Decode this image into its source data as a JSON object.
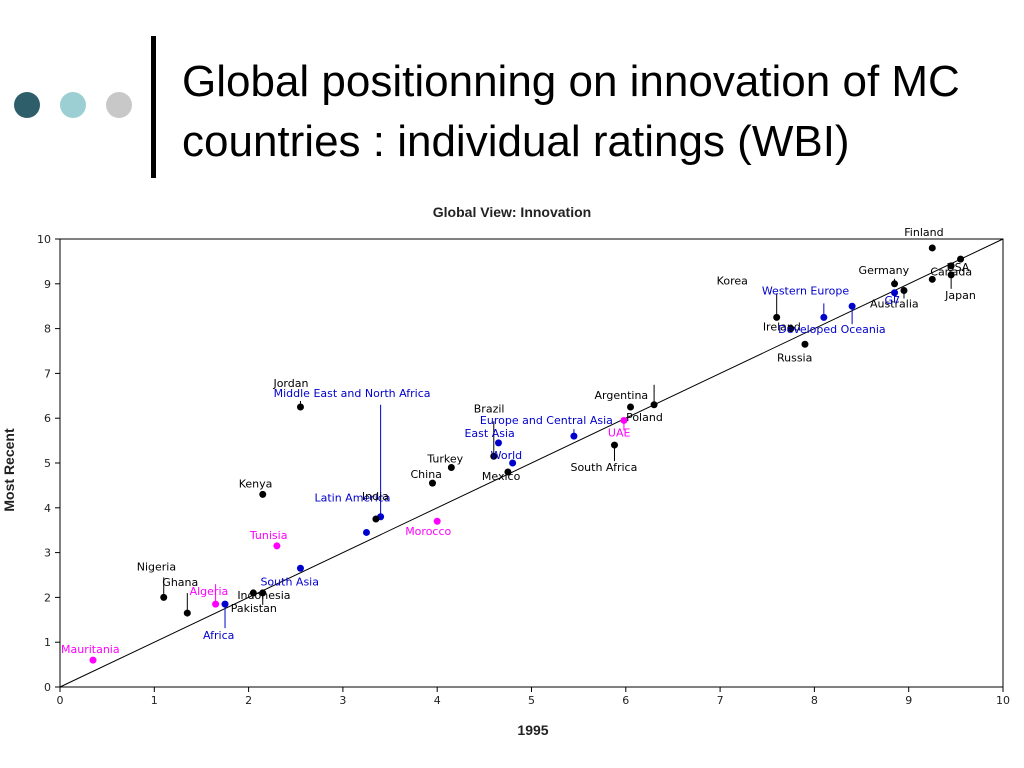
{
  "slide": {
    "title": "Global positionning on innovation of MC countries : individual ratings (WBI)",
    "dot_colors": [
      "#2e5e6a",
      "#9ccfd3",
      "#c8c8c8"
    ]
  },
  "chart_data": {
    "type": "scatter",
    "title": "Global View: Innovation",
    "xlabel": "1995",
    "ylabel": "Most Recent",
    "xlim": [
      0,
      10
    ],
    "ylim": [
      0,
      10
    ],
    "xticks": [
      0,
      1,
      2,
      3,
      4,
      5,
      6,
      7,
      8,
      9,
      10
    ],
    "yticks": [
      0,
      1,
      2,
      3,
      4,
      5,
      6,
      7,
      8,
      9,
      10
    ],
    "grid": false,
    "reference_line": "y = x",
    "colors": {
      "country": "#000000",
      "region": "#0000cc",
      "mediterranean": "#ff00ff"
    },
    "points": [
      {
        "label": "Finland",
        "x": 9.25,
        "y": 9.8,
        "group": "country"
      },
      {
        "label": "USA",
        "x": 9.55,
        "y": 9.55,
        "group": "country"
      },
      {
        "label": "",
        "x": 9.45,
        "y": 9.4,
        "group": "country"
      },
      {
        "label": "Germany",
        "x": 8.85,
        "y": 9.0,
        "group": "country"
      },
      {
        "label": "Canada",
        "x": 9.25,
        "y": 9.1,
        "group": "country"
      },
      {
        "label": "Japan",
        "x": 9.45,
        "y": 9.2,
        "group": "country"
      },
      {
        "label": "Australia",
        "x": 8.95,
        "y": 8.85,
        "group": "country"
      },
      {
        "label": "G7",
        "x": 8.85,
        "y": 8.8,
        "group": "region"
      },
      {
        "label": "Korea",
        "x": 7.6,
        "y": 8.25,
        "group": "country"
      },
      {
        "label": "Western Europe",
        "x": 8.1,
        "y": 8.25,
        "group": "region"
      },
      {
        "label": "Ireland",
        "x": 7.75,
        "y": 8.0,
        "group": "country"
      },
      {
        "label": "Developed Oceania",
        "x": 8.4,
        "y": 8.5,
        "group": "region"
      },
      {
        "label": "Russia",
        "x": 7.9,
        "y": 7.65,
        "group": "country"
      },
      {
        "label": "Argentina",
        "x": 6.05,
        "y": 6.25,
        "group": "country"
      },
      {
        "label": "Poland",
        "x": 6.3,
        "y": 6.3,
        "group": "country"
      },
      {
        "label": "Europe and Central Asia",
        "x": 5.45,
        "y": 5.6,
        "group": "region"
      },
      {
        "label": "UAE",
        "x": 5.98,
        "y": 5.95,
        "group": "mediterranean"
      },
      {
        "label": "South Africa",
        "x": 5.88,
        "y": 5.4,
        "group": "country"
      },
      {
        "label": "Brazil",
        "x": 4.6,
        "y": 5.15,
        "group": "country"
      },
      {
        "label": "East Asia",
        "x": 4.65,
        "y": 5.45,
        "group": "region"
      },
      {
        "label": "World",
        "x": 4.8,
        "y": 5.0,
        "group": "region"
      },
      {
        "label": "Mexico",
        "x": 4.75,
        "y": 4.8,
        "group": "country"
      },
      {
        "label": "Turkey",
        "x": 4.15,
        "y": 4.9,
        "group": "country"
      },
      {
        "label": "China",
        "x": 3.95,
        "y": 4.55,
        "group": "country"
      },
      {
        "label": "Jordan",
        "x": 2.55,
        "y": 6.25,
        "group": "country"
      },
      {
        "label": "Middle East and North Africa",
        "x": 3.4,
        "y": 3.8,
        "group": "region"
      },
      {
        "label": "Kenya",
        "x": 2.15,
        "y": 4.3,
        "group": "country"
      },
      {
        "label": "Latin America",
        "x": 3.25,
        "y": 3.45,
        "group": "region"
      },
      {
        "label": "India",
        "x": 3.35,
        "y": 3.75,
        "group": "country"
      },
      {
        "label": "Morocco",
        "x": 4.0,
        "y": 3.7,
        "group": "mediterranean"
      },
      {
        "label": "Tunisia",
        "x": 2.3,
        "y": 3.15,
        "group": "mediterranean"
      },
      {
        "label": "South Asia",
        "x": 2.55,
        "y": 2.65,
        "group": "region"
      },
      {
        "label": "Nigeria",
        "x": 1.1,
        "y": 2.0,
        "group": "country"
      },
      {
        "label": "Ghana",
        "x": 1.35,
        "y": 1.65,
        "group": "country"
      },
      {
        "label": "Algeria",
        "x": 1.65,
        "y": 1.85,
        "group": "mediterranean"
      },
      {
        "label": "Indonesia",
        "x": 2.05,
        "y": 2.1,
        "group": "country"
      },
      {
        "label": "Pakistan",
        "x": 2.15,
        "y": 2.1,
        "group": "country"
      },
      {
        "label": "Africa",
        "x": 1.75,
        "y": 1.85,
        "group": "region"
      },
      {
        "label": "Mauritania",
        "x": 0.35,
        "y": 0.6,
        "group": "mediterranean"
      }
    ]
  }
}
